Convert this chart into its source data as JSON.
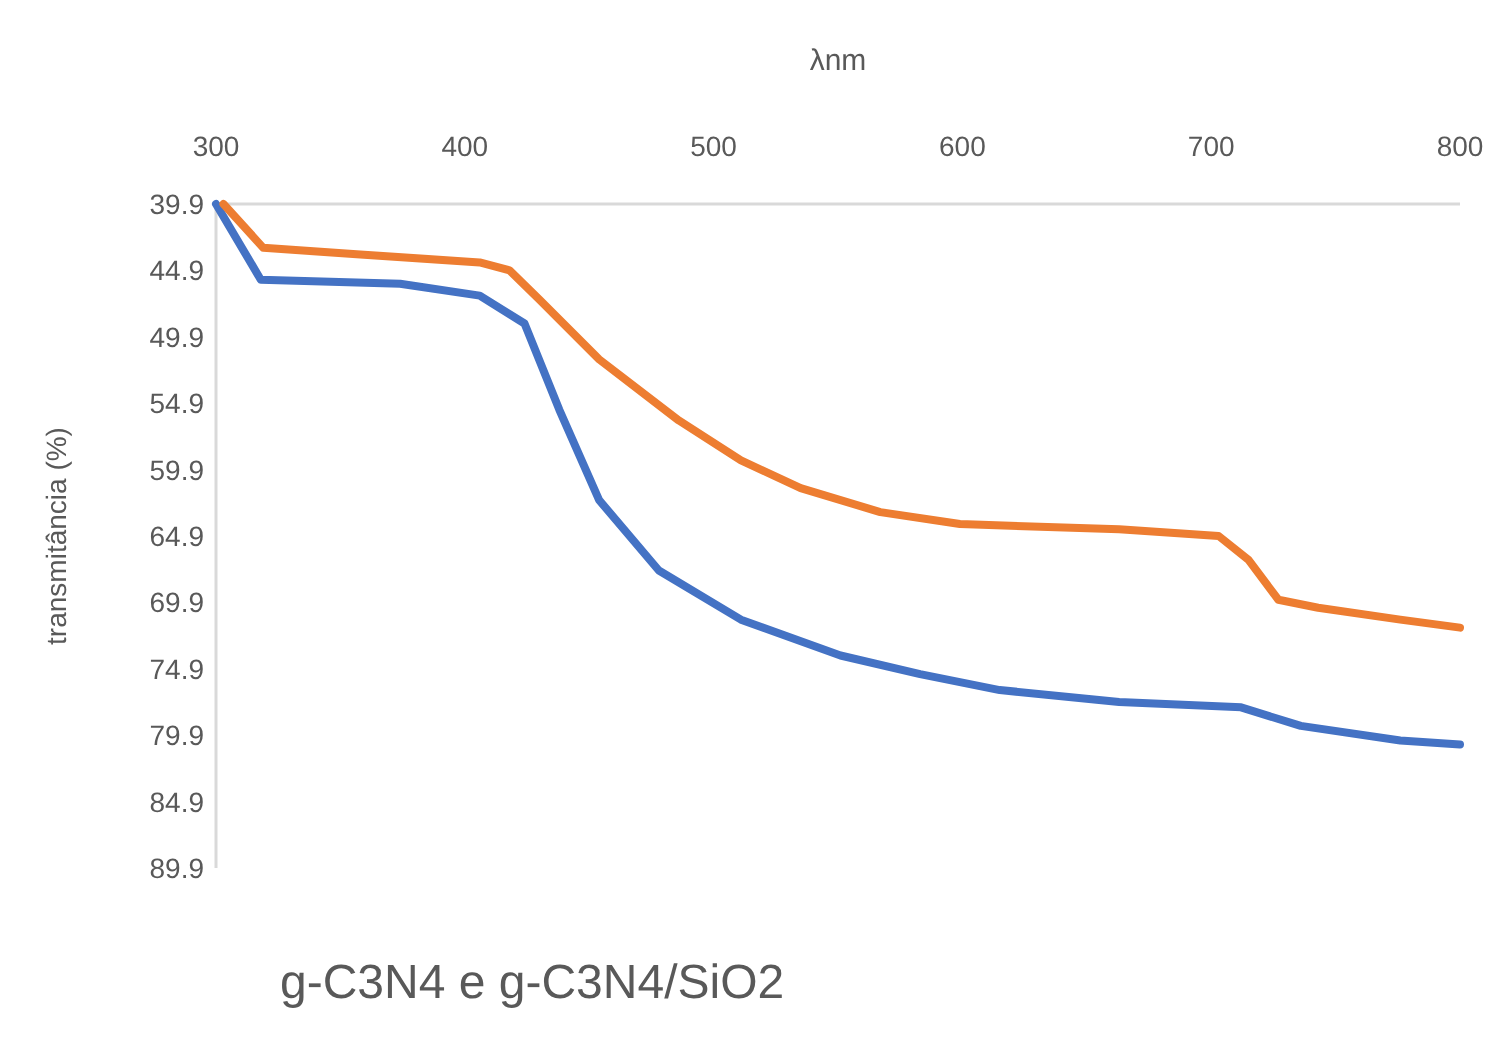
{
  "chart_data": {
    "type": "line",
    "title": "g-C3N4 e g-C3N4/SiO2",
    "xlabel": "λnm",
    "ylabel": "transmitância (%)",
    "xlim": [
      300,
      800
    ],
    "xticks": [
      300,
      400,
      500,
      600,
      700,
      800
    ],
    "ylim": [
      89.9,
      39.9
    ],
    "yticks": [
      39.9,
      44.9,
      49.9,
      54.9,
      59.9,
      64.9,
      69.9,
      74.9,
      79.9,
      84.9,
      89.9
    ],
    "grid": false,
    "series": [
      {
        "color": "#4472c4",
        "x": [
          300,
          318,
          374,
          406,
          424,
          438,
          454,
          478,
          511,
          551,
          583,
          615,
          663,
          712,
          736,
          776,
          800
        ],
        "values": [
          39.9,
          45.6,
          45.9,
          46.8,
          48.9,
          55.4,
          62.2,
          67.5,
          71.2,
          73.9,
          75.3,
          76.5,
          77.4,
          77.8,
          79.2,
          80.3,
          80.6
        ]
      },
      {
        "color": "#ed7d31",
        "x": [
          303,
          319,
          358,
          406,
          418,
          430,
          454,
          486,
          511,
          535,
          567,
          599,
          663,
          703,
          715,
          727,
          743,
          776,
          800
        ],
        "values": [
          39.9,
          43.2,
          43.7,
          44.3,
          44.9,
          47.1,
          51.6,
          56.2,
          59.2,
          61.3,
          63.1,
          64.0,
          64.4,
          64.9,
          66.7,
          69.7,
          70.3,
          71.2,
          71.8
        ]
      }
    ]
  }
}
